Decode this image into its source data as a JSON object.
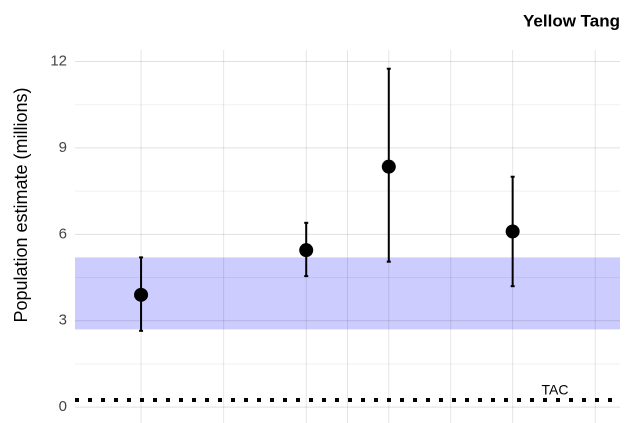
{
  "chart_data": {
    "type": "errorbar",
    "title": "Yellow Tang",
    "y_label": "Population estimate (millions)",
    "x": [
      0,
      4,
      6,
      9
    ],
    "values": [
      3.9,
      5.45,
      8.35,
      6.1
    ],
    "lower": [
      2.65,
      4.55,
      5.05,
      4.2
    ],
    "upper": [
      5.2,
      6.4,
      11.75,
      8.0
    ],
    "color": "#000000",
    "xlim": [
      -1.6,
      11.6
    ],
    "xticks": [
      0,
      2,
      4,
      5,
      6,
      7.5,
      9,
      11
    ],
    "xtick_labels": false,
    "ylim": [
      -0.55,
      12.4
    ],
    "yticks": [
      0,
      3,
      6,
      9,
      12
    ],
    "yminor": [
      1.5,
      4.5,
      7.5,
      10.5
    ],
    "grid": true,
    "band": {
      "range": [
        2.7,
        5.2
      ],
      "color": "#ccccff"
    },
    "reference_line": {
      "value": 0.25,
      "label": "TAC",
      "style": "dotted"
    }
  }
}
